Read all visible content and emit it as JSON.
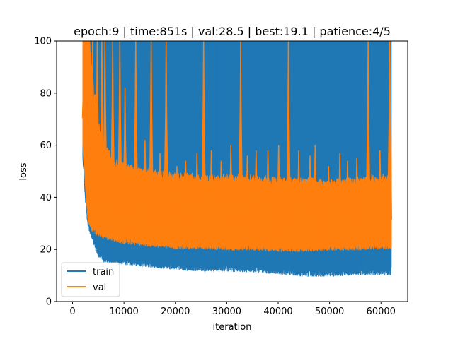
{
  "chart_data": {
    "type": "line",
    "title": "epoch:9 | time:851s | val:28.5 | best:19.1 | patience:4/5",
    "xlabel": "iteration",
    "ylabel": "loss",
    "xlim": [
      -3100,
      65200
    ],
    "ylim": [
      0,
      100
    ],
    "xticks": [
      0,
      10000,
      20000,
      30000,
      40000,
      50000,
      60000
    ],
    "xtick_labels": [
      "0",
      "10000",
      "20000",
      "30000",
      "40000",
      "50000",
      "60000"
    ],
    "yticks": [
      0,
      20,
      40,
      60,
      80,
      100
    ],
    "ytick_labels": [
      "0",
      "20",
      "40",
      "60",
      "80",
      "100"
    ],
    "legend_position": "lower-left",
    "series": [
      {
        "name": "train",
        "color": "#1f77b4",
        "envelope": {
          "x": [
            2000,
            2500,
            3000,
            3500,
            4000,
            5000,
            6000,
            8000,
            10000,
            15000,
            20000,
            25000,
            30000,
            35000,
            40000,
            45000,
            50000,
            55000,
            60000,
            62000
          ],
          "low": [
            55,
            40,
            30,
            27,
            24,
            19,
            17,
            16,
            16,
            15,
            14,
            13.5,
            13.5,
            13,
            12.5,
            11.5,
            11.5,
            12,
            12,
            12
          ],
          "high": [
            100,
            100,
            100,
            100,
            100,
            100,
            100,
            100,
            100,
            100,
            100,
            100,
            100,
            100,
            100,
            100,
            100,
            100,
            100,
            100
          ]
        }
      },
      {
        "name": "val",
        "color": "#ff7f0e",
        "envelope": {
          "x": [
            2000,
            2500,
            3000,
            4000,
            5000,
            6000,
            8000,
            10000,
            15000,
            20000,
            25000,
            30000,
            35000,
            40000,
            45000,
            50000,
            55000,
            60000,
            62000
          ],
          "low": [
            60,
            45,
            32,
            28,
            27,
            26,
            25,
            24,
            23,
            22,
            22,
            21.5,
            21.5,
            21,
            21,
            21.5,
            21.5,
            22,
            22
          ],
          "high": [
            100,
            100,
            100,
            80,
            65,
            58,
            52,
            50,
            48,
            47,
            46,
            46,
            46,
            45,
            45,
            44,
            45,
            46,
            46
          ]
        },
        "spikes": [
          {
            "x": 2300,
            "y": 100
          },
          {
            "x": 3100,
            "y": 100
          },
          {
            "x": 3900,
            "y": 100
          },
          {
            "x": 4800,
            "y": 100
          },
          {
            "x": 5700,
            "y": 100
          },
          {
            "x": 6300,
            "y": 100
          },
          {
            "x": 7800,
            "y": 100
          },
          {
            "x": 9200,
            "y": 100
          },
          {
            "x": 10200,
            "y": 82
          },
          {
            "x": 12300,
            "y": 100
          },
          {
            "x": 14100,
            "y": 62
          },
          {
            "x": 15300,
            "y": 100
          },
          {
            "x": 17000,
            "y": 57
          },
          {
            "x": 18200,
            "y": 100
          },
          {
            "x": 20300,
            "y": 52
          },
          {
            "x": 22000,
            "y": 54
          },
          {
            "x": 24200,
            "y": 57
          },
          {
            "x": 25500,
            "y": 100
          },
          {
            "x": 27000,
            "y": 58
          },
          {
            "x": 28900,
            "y": 54
          },
          {
            "x": 30800,
            "y": 60
          },
          {
            "x": 32700,
            "y": 100
          },
          {
            "x": 34000,
            "y": 56
          },
          {
            "x": 35700,
            "y": 58
          },
          {
            "x": 38000,
            "y": 58
          },
          {
            "x": 40100,
            "y": 60
          },
          {
            "x": 42000,
            "y": 100
          },
          {
            "x": 44000,
            "y": 58
          },
          {
            "x": 46200,
            "y": 56
          },
          {
            "x": 47200,
            "y": 60
          },
          {
            "x": 49800,
            "y": 52
          },
          {
            "x": 52000,
            "y": 57
          },
          {
            "x": 53500,
            "y": 54
          },
          {
            "x": 55300,
            "y": 55
          },
          {
            "x": 57500,
            "y": 100
          },
          {
            "x": 59800,
            "y": 58
          },
          {
            "x": 61700,
            "y": 100
          }
        ]
      }
    ]
  }
}
